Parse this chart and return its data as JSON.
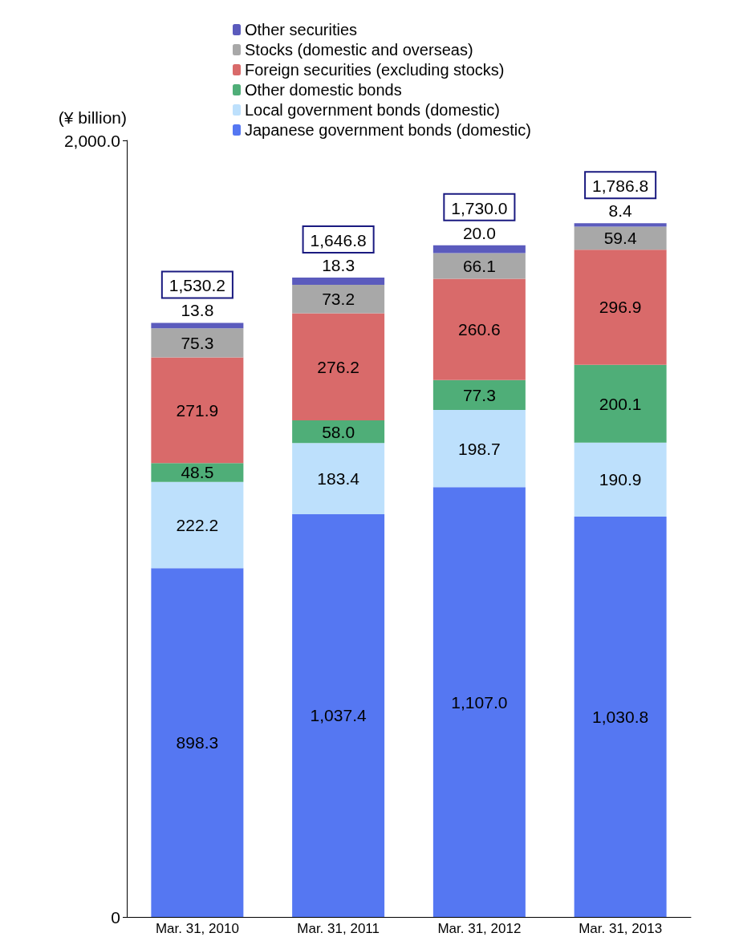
{
  "chart_data": {
    "type": "bar",
    "stacked": true,
    "ylabel": "(¥ billion)",
    "categories": [
      "Mar. 31, 2010",
      "Mar. 31, 2011",
      "Mar. 31, 2012",
      "Mar. 31, 2013"
    ],
    "series": [
      {
        "name": "Japanese government bonds (domestic)",
        "color": "#5577f2",
        "values": [
          898.3,
          1037.4,
          1107.0,
          1030.8
        ],
        "value_labels": [
          "898.3",
          "1,037.4",
          "1,107.0",
          "1,030.8"
        ]
      },
      {
        "name": "Local government bonds (domestic)",
        "color": "#bde0fc",
        "values": [
          222.2,
          183.4,
          198.7,
          190.9
        ],
        "value_labels": [
          "222.2",
          "183.4",
          "198.7",
          "190.9"
        ]
      },
      {
        "name": "Other domestic bonds",
        "color": "#4fae78",
        "values": [
          48.5,
          58.0,
          77.3,
          200.1
        ],
        "value_labels": [
          "48.5",
          "58.0",
          "77.3",
          "200.1"
        ]
      },
      {
        "name": "Foreign securities (excluding stocks)",
        "color": "#d96a6a",
        "values": [
          271.9,
          276.2,
          260.6,
          296.9
        ],
        "value_labels": [
          "271.9",
          "276.2",
          "260.6",
          "296.9"
        ]
      },
      {
        "name": "Stocks (domestic and overseas)",
        "color": "#a8a8a8",
        "values": [
          75.3,
          73.2,
          66.1,
          59.4
        ],
        "value_labels": [
          "75.3",
          "73.2",
          "66.1",
          "59.4"
        ]
      },
      {
        "name": "Other securities",
        "color": "#5b5bbd",
        "values": [
          13.8,
          18.3,
          20.0,
          8.4
        ],
        "value_labels": [
          "13.8",
          "18.3",
          "20.0",
          "8.4"
        ]
      }
    ],
    "totals": [
      "1,530.2",
      "1,646.8",
      "1,730.0",
      "1,786.8"
    ],
    "ylim": [
      0,
      2000
    ],
    "yticks": [
      0,
      {
        "value": 2000,
        "label": "2,000.0"
      }
    ],
    "grid": false,
    "legend": "top"
  }
}
